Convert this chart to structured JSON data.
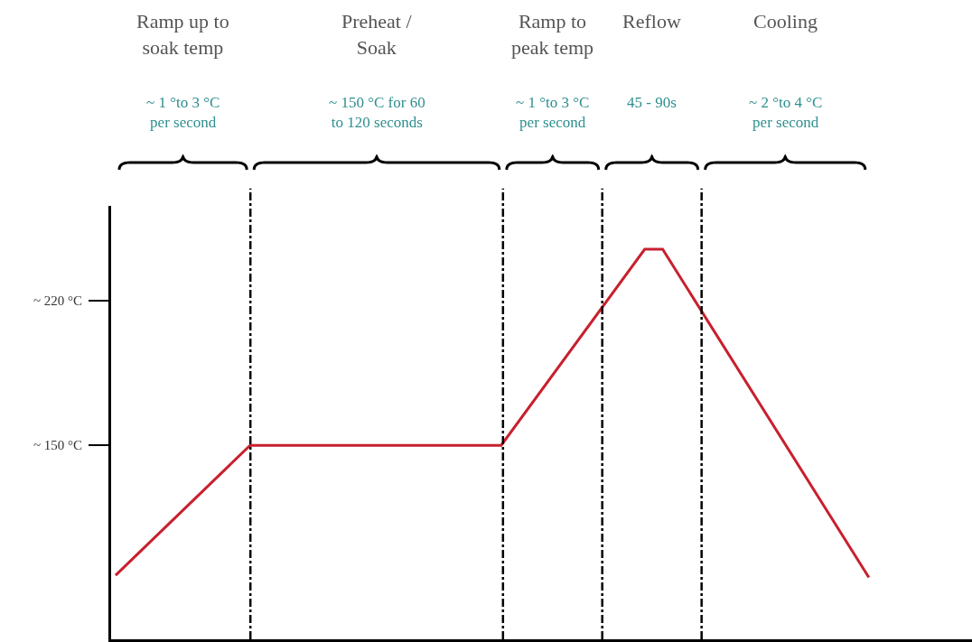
{
  "chart_data": {
    "type": "line",
    "categories": [
      null,
      null,
      null,
      null,
      null,
      null,
      null,
      null,
      null,
      null,
      null,
      null,
      null,
      null,
      null,
      null,
      null,
      null,
      null,
      null,
      null,
      null,
      null,
      null,
      null,
      null,
      null,
      null,
      null,
      null,
      null,
      null,
      null,
      null,
      null,
      null,
      null,
      null,
      null,
      null,
      null,
      null,
      null,
      null,
      null,
      null,
      null,
      null,
      null,
      null,
      null,
      null,
      null,
      null,
      null,
      null,
      null,
      null,
      null,
      null,
      null,
      null,
      null,
      null,
      null,
      null,
      null,
      null,
      null,
      null,
      null,
      null,
      null,
      null,
      null,
      null,
      null,
      null,
      null,
      null,
      null,
      null,
      null,
      null,
      null,
      null,
      null,
      null,
      null,
      null,
      null,
      null,
      null,
      null,
      null,
      null
    ],
    "values": [
      87,
      null,
      null,
      null,
      null,
      null,
      null,
      null,
      null,
      null,
      null,
      null,
      null,
      null,
      null,
      150,
      null,
      null,
      null,
      null,
      null,
      null,
      null,
      null,
      null,
      null,
      null,
      null,
      null,
      null,
      null,
      null,
      null,
      null,
      null,
      null,
      null,
      null,
      null,
      null,
      null,
      null,
      null,
      150,
      null,
      null,
      null,
      null,
      null,
      null,
      null,
      null,
      null,
      null,
      null,
      null,
      null,
      null,
      null,
      245,
      null,
      245,
      null,
      null,
      null,
      null,
      null,
      null,
      null,
      null,
      null,
      null,
      null,
      null,
      null,
      null,
      null,
      null,
      null,
      null,
      null,
      null,
      null,
      null,
      86,
      null,
      null,
      null,
      null,
      null,
      null,
      null,
      null,
      null,
      null,
      null
    ],
    "color": "#c8202e",
    "ylim": [
      56,
      266
    ],
    "yticks": [
      {
        "value": 150,
        "label": "~ 150 °C"
      },
      {
        "value": 220,
        "label": "~ 220 °C"
      }
    ],
    "tick_labels": "y",
    "annotations": [
      "Ramp up to\nsoak temp",
      "~ 1 °to 3 °C\nper second",
      "Preheat /\nSoak",
      "~ 150 °C for 60\nto 120 seconds",
      "Ramp to\npeak temp",
      "~ 1 °to 3 °C\nper second",
      "Reflow",
      "45 - 90s",
      "Cooling",
      "~ 2 °to 4 °C\nper second"
    ]
  }
}
